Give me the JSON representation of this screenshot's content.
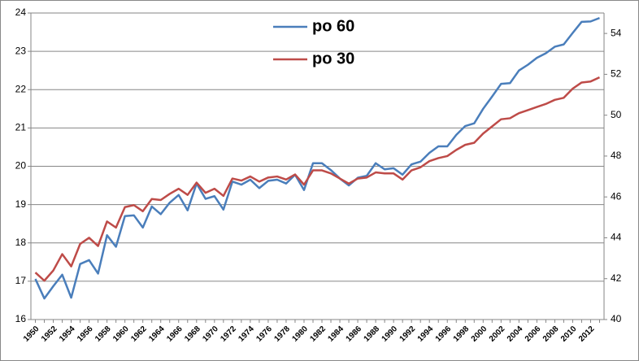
{
  "chart_data": {
    "type": "line",
    "categories": [
      "1950",
      null,
      "1952",
      null,
      "1954",
      null,
      "1956",
      null,
      "1958",
      null,
      "1960",
      null,
      "1962",
      null,
      "1964",
      null,
      "1966",
      null,
      "1968",
      null,
      "1970",
      null,
      "1972",
      null,
      "1974",
      null,
      "1976",
      null,
      "1978",
      null,
      "1980",
      null,
      "1982",
      null,
      "1984",
      null,
      "1986",
      null,
      "1988",
      null,
      "1990",
      null,
      "1992",
      null,
      "1994",
      null,
      "1996",
      null,
      "1998",
      null,
      "2000",
      null,
      "2002",
      null,
      "2004",
      null,
      "2006",
      null,
      "2008",
      null,
      "2010",
      null,
      "2012",
      null
    ],
    "series": [
      {
        "name": "po 60",
        "color": "#4a7ebb",
        "values": [
          17.06,
          16.55,
          16.87,
          17.17,
          16.57,
          17.45,
          17.55,
          17.2,
          18.2,
          17.9,
          18.7,
          18.72,
          18.4,
          18.95,
          18.75,
          19.05,
          19.25,
          18.85,
          19.55,
          19.15,
          19.22,
          18.87,
          19.6,
          19.52,
          19.65,
          19.43,
          19.62,
          19.65,
          19.55,
          19.78,
          19.38,
          20.08,
          20.08,
          19.9,
          19.68,
          19.5,
          19.7,
          19.75,
          20.08,
          19.92,
          19.95,
          19.78,
          20.05,
          20.12,
          20.35,
          20.52,
          20.52,
          20.82,
          21.05,
          21.12,
          21.5,
          21.82,
          22.15,
          22.17,
          22.5,
          22.65,
          22.83,
          22.95,
          23.12,
          23.18,
          23.48,
          23.77,
          23.78,
          23.87
        ]
      },
      {
        "name": "po 30",
        "color": "#be4b48",
        "axis": "y2",
        "values": [
          42.3,
          41.9,
          42.4,
          43.2,
          42.6,
          43.7,
          44.0,
          43.6,
          44.8,
          44.5,
          45.5,
          45.6,
          45.3,
          45.9,
          45.85,
          46.15,
          46.4,
          46.1,
          46.7,
          46.2,
          46.4,
          46.05,
          46.9,
          46.8,
          47.0,
          46.75,
          46.95,
          47.0,
          46.85,
          47.1,
          46.6,
          47.3,
          47.3,
          47.15,
          46.9,
          46.65,
          46.9,
          46.95,
          47.2,
          47.15,
          47.15,
          46.85,
          47.3,
          47.45,
          47.75,
          47.9,
          48.0,
          48.3,
          48.55,
          48.65,
          49.1,
          49.45,
          49.8,
          49.85,
          50.1,
          50.25,
          50.4,
          50.55,
          50.75,
          50.85,
          51.3,
          51.6,
          51.65,
          51.85
        ]
      }
    ],
    "ylim": [
      16,
      24
    ],
    "yticks": [
      16,
      17,
      18,
      19,
      20,
      21,
      22,
      23,
      24
    ],
    "y2lim": [
      40,
      55
    ],
    "y2ticks": [
      40,
      42,
      44,
      46,
      48,
      50,
      52,
      54
    ],
    "grid": true
  }
}
